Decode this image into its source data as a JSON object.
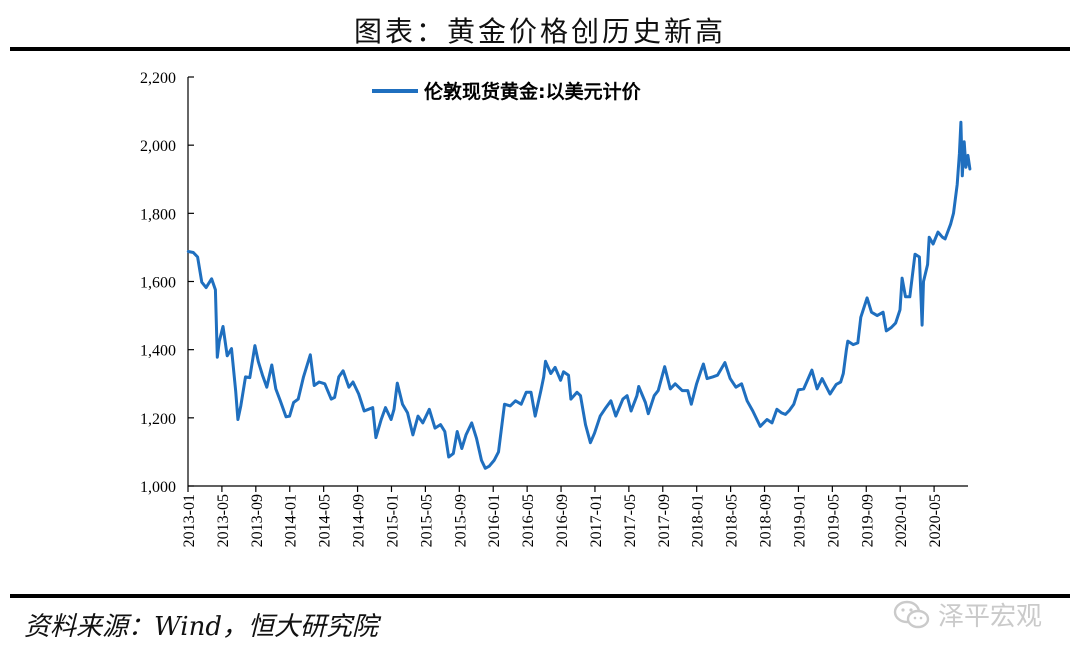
{
  "header": {
    "title": "图表：黄金价格创历史新高"
  },
  "footer": {
    "source": "资料来源：Wind，恒大研究院",
    "watermark": "泽平宏观",
    "watermark_icon": "wechat-icon"
  },
  "colors": {
    "series": "#1f6fbf",
    "axis": "#000000"
  },
  "chart_data": {
    "type": "line",
    "title": "图表：黄金价格创历史新高",
    "xlabel": "",
    "ylabel": "",
    "ylim": [
      1000,
      2200
    ],
    "yticks": [
      1000,
      1200,
      1400,
      1600,
      1800,
      2000,
      2200
    ],
    "ytick_labels": [
      "1,000",
      "1,200",
      "1,400",
      "1,600",
      "1,800",
      "2,000",
      "2,200"
    ],
    "xlim": [
      "2013-01",
      "2020-09"
    ],
    "xtick_labels": [
      "2013-01",
      "2013-05",
      "2013-09",
      "2014-01",
      "2014-05",
      "2014-09",
      "2015-01",
      "2015-05",
      "2015-09",
      "2016-01",
      "2016-05",
      "2016-09",
      "2017-01",
      "2017-05",
      "2017-09",
      "2018-01",
      "2018-05",
      "2018-09",
      "2019-01",
      "2019-05",
      "2019-09",
      "2020-01",
      "2020-05"
    ],
    "legend_position": "top-center",
    "grid": false,
    "series": [
      {
        "name": "伦敦现货黄金:以美元计价",
        "points": [
          [
            "2013-01-02",
            1688
          ],
          [
            "2013-01-20",
            1685
          ],
          [
            "2013-02-05",
            1672
          ],
          [
            "2013-02-20",
            1598
          ],
          [
            "2013-03-05",
            1582
          ],
          [
            "2013-03-25",
            1608
          ],
          [
            "2013-04-08",
            1576
          ],
          [
            "2013-04-15",
            1378
          ],
          [
            "2013-04-22",
            1425
          ],
          [
            "2013-05-05",
            1468
          ],
          [
            "2013-05-20",
            1382
          ],
          [
            "2013-06-05",
            1403
          ],
          [
            "2013-06-20",
            1278
          ],
          [
            "2013-06-28",
            1195
          ],
          [
            "2013-07-08",
            1235
          ],
          [
            "2013-07-25",
            1320
          ],
          [
            "2013-08-10",
            1318
          ],
          [
            "2013-08-28",
            1412
          ],
          [
            "2013-09-10",
            1365
          ],
          [
            "2013-09-25",
            1325
          ],
          [
            "2013-10-10",
            1290
          ],
          [
            "2013-10-28",
            1355
          ],
          [
            "2013-11-12",
            1285
          ],
          [
            "2013-11-28",
            1250
          ],
          [
            "2013-12-18",
            1203
          ],
          [
            "2013-12-31",
            1205
          ],
          [
            "2014-01-15",
            1245
          ],
          [
            "2014-02-01",
            1255
          ],
          [
            "2014-02-20",
            1320
          ],
          [
            "2014-03-14",
            1385
          ],
          [
            "2014-03-28",
            1295
          ],
          [
            "2014-04-15",
            1305
          ],
          [
            "2014-05-05",
            1300
          ],
          [
            "2014-05-28",
            1255
          ],
          [
            "2014-06-10",
            1260
          ],
          [
            "2014-06-25",
            1320
          ],
          [
            "2014-07-10",
            1338
          ],
          [
            "2014-07-31",
            1290
          ],
          [
            "2014-08-15",
            1305
          ],
          [
            "2014-09-05",
            1270
          ],
          [
            "2014-09-25",
            1220
          ],
          [
            "2014-10-10",
            1225
          ],
          [
            "2014-10-25",
            1230
          ],
          [
            "2014-11-06",
            1142
          ],
          [
            "2014-11-25",
            1195
          ],
          [
            "2014-12-10",
            1230
          ],
          [
            "2014-12-30",
            1195
          ],
          [
            "2015-01-10",
            1225
          ],
          [
            "2015-01-22",
            1302
          ],
          [
            "2015-02-10",
            1240
          ],
          [
            "2015-02-28",
            1215
          ],
          [
            "2015-03-17",
            1150
          ],
          [
            "2015-04-05",
            1205
          ],
          [
            "2015-04-22",
            1185
          ],
          [
            "2015-05-15",
            1225
          ],
          [
            "2015-06-05",
            1170
          ],
          [
            "2015-06-25",
            1180
          ],
          [
            "2015-07-10",
            1160
          ],
          [
            "2015-07-24",
            1085
          ],
          [
            "2015-08-10",
            1095
          ],
          [
            "2015-08-24",
            1160
          ],
          [
            "2015-09-10",
            1110
          ],
          [
            "2015-09-25",
            1150
          ],
          [
            "2015-10-15",
            1185
          ],
          [
            "2015-11-02",
            1140
          ],
          [
            "2015-11-20",
            1075
          ],
          [
            "2015-12-03",
            1052
          ],
          [
            "2015-12-17",
            1058
          ],
          [
            "2016-01-04",
            1075
          ],
          [
            "2016-01-20",
            1100
          ],
          [
            "2016-02-11",
            1240
          ],
          [
            "2016-03-01",
            1235
          ],
          [
            "2016-03-20",
            1250
          ],
          [
            "2016-04-10",
            1240
          ],
          [
            "2016-04-28",
            1275
          ],
          [
            "2016-05-15",
            1275
          ],
          [
            "2016-05-30",
            1205
          ],
          [
            "2016-06-20",
            1280
          ],
          [
            "2016-06-30",
            1320
          ],
          [
            "2016-07-06",
            1366
          ],
          [
            "2016-07-25",
            1330
          ],
          [
            "2016-08-10",
            1348
          ],
          [
            "2016-08-30",
            1310
          ],
          [
            "2016-09-10",
            1335
          ],
          [
            "2016-09-28",
            1325
          ],
          [
            "2016-10-06",
            1255
          ],
          [
            "2016-10-28",
            1275
          ],
          [
            "2016-11-10",
            1265
          ],
          [
            "2016-11-28",
            1180
          ],
          [
            "2016-12-15",
            1127
          ],
          [
            "2016-12-30",
            1155
          ],
          [
            "2017-01-20",
            1205
          ],
          [
            "2017-02-10",
            1230
          ],
          [
            "2017-02-28",
            1250
          ],
          [
            "2017-03-15",
            1205
          ],
          [
            "2017-04-10",
            1255
          ],
          [
            "2017-04-25",
            1265
          ],
          [
            "2017-05-09",
            1220
          ],
          [
            "2017-05-30",
            1265
          ],
          [
            "2017-06-06",
            1292
          ],
          [
            "2017-06-30",
            1245
          ],
          [
            "2017-07-10",
            1212
          ],
          [
            "2017-07-31",
            1265
          ],
          [
            "2017-08-15",
            1280
          ],
          [
            "2017-09-08",
            1350
          ],
          [
            "2017-09-28",
            1285
          ],
          [
            "2017-10-15",
            1300
          ],
          [
            "2017-11-10",
            1280
          ],
          [
            "2017-11-30",
            1280
          ],
          [
            "2017-12-12",
            1240
          ],
          [
            "2017-12-31",
            1300
          ],
          [
            "2018-01-15",
            1335
          ],
          [
            "2018-01-25",
            1358
          ],
          [
            "2018-02-08",
            1315
          ],
          [
            "2018-02-28",
            1320
          ],
          [
            "2018-03-15",
            1325
          ],
          [
            "2018-04-11",
            1362
          ],
          [
            "2018-04-30",
            1315
          ],
          [
            "2018-05-20",
            1290
          ],
          [
            "2018-06-10",
            1300
          ],
          [
            "2018-06-30",
            1250
          ],
          [
            "2018-07-20",
            1220
          ],
          [
            "2018-08-16",
            1175
          ],
          [
            "2018-09-10",
            1195
          ],
          [
            "2018-09-28",
            1185
          ],
          [
            "2018-10-15",
            1225
          ],
          [
            "2018-10-31",
            1215
          ],
          [
            "2018-11-15",
            1210
          ],
          [
            "2018-11-30",
            1222
          ],
          [
            "2018-12-15",
            1240
          ],
          [
            "2018-12-31",
            1282
          ],
          [
            "2019-01-20",
            1285
          ],
          [
            "2019-02-19",
            1340
          ],
          [
            "2019-03-07",
            1285
          ],
          [
            "2019-03-25",
            1315
          ],
          [
            "2019-04-23",
            1270
          ],
          [
            "2019-05-15",
            1298
          ],
          [
            "2019-05-31",
            1305
          ],
          [
            "2019-06-10",
            1330
          ],
          [
            "2019-06-21",
            1400
          ],
          [
            "2019-06-26",
            1425
          ],
          [
            "2019-07-15",
            1415
          ],
          [
            "2019-08-01",
            1420
          ],
          [
            "2019-08-12",
            1495
          ],
          [
            "2019-09-04",
            1552
          ],
          [
            "2019-09-20",
            1510
          ],
          [
            "2019-10-10",
            1500
          ],
          [
            "2019-10-31",
            1510
          ],
          [
            "2019-11-12",
            1455
          ],
          [
            "2019-11-30",
            1465
          ],
          [
            "2019-12-15",
            1478
          ],
          [
            "2019-12-31",
            1517
          ],
          [
            "2020-01-08",
            1610
          ],
          [
            "2020-01-20",
            1555
          ],
          [
            "2020-02-05",
            1555
          ],
          [
            "2020-02-24",
            1680
          ],
          [
            "2020-03-09",
            1672
          ],
          [
            "2020-03-19",
            1472
          ],
          [
            "2020-03-24",
            1600
          ],
          [
            "2020-04-08",
            1650
          ],
          [
            "2020-04-14",
            1730
          ],
          [
            "2020-04-28",
            1710
          ],
          [
            "2020-05-15",
            1745
          ],
          [
            "2020-05-31",
            1730
          ],
          [
            "2020-06-10",
            1725
          ],
          [
            "2020-06-30",
            1768
          ],
          [
            "2020-07-10",
            1800
          ],
          [
            "2020-07-23",
            1885
          ],
          [
            "2020-07-31",
            1975
          ],
          [
            "2020-08-06",
            2067
          ],
          [
            "2020-08-11",
            1910
          ],
          [
            "2020-08-18",
            2010
          ],
          [
            "2020-08-24",
            1935
          ],
          [
            "2020-08-31",
            1970
          ],
          [
            "2020-09-08",
            1930
          ]
        ]
      }
    ]
  }
}
